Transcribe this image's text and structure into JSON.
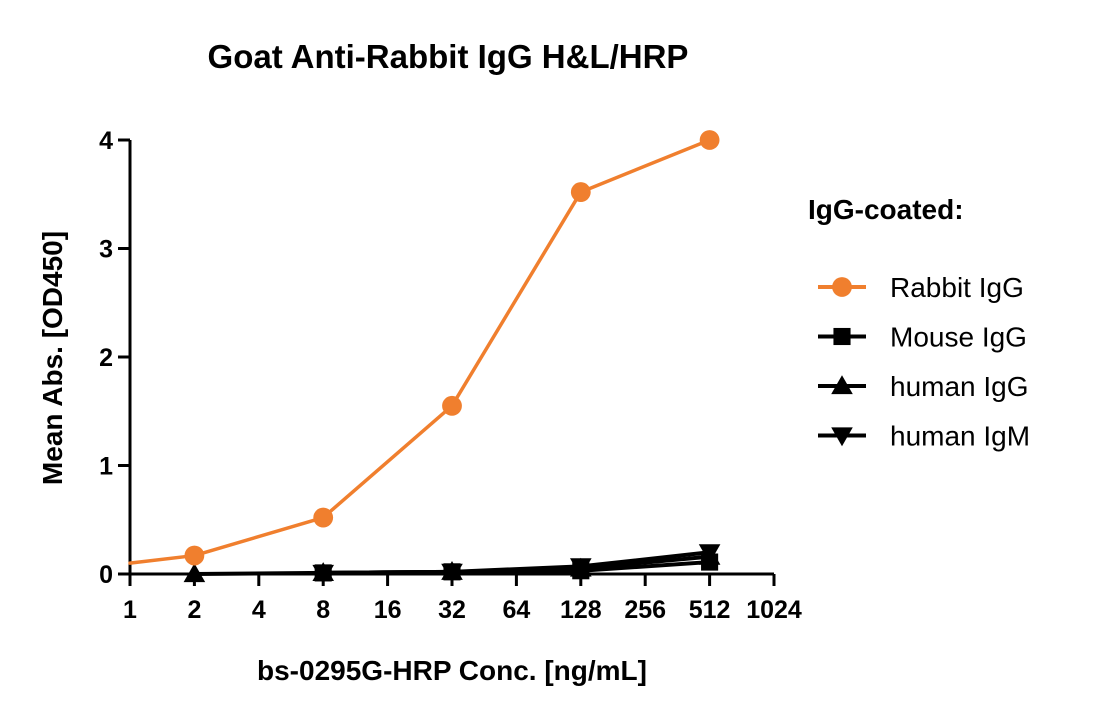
{
  "chart_data": {
    "type": "line",
    "title": "Goat Anti-Rabbit IgG H&L/HRP",
    "xlabel": "bs-0295G-HRP Conc. [ng/mL]",
    "ylabel": "Mean Abs. [OD450]",
    "x_scale": "log2",
    "xlim": [
      1,
      1024
    ],
    "ylim": [
      0,
      4
    ],
    "x_ticks": [
      "1",
      "2",
      "4",
      "8",
      "16",
      "32",
      "64",
      "128",
      "256",
      "512",
      "1024"
    ],
    "y_ticks": [
      "0",
      "1",
      "2",
      "3",
      "4"
    ],
    "legend_title": "IgG-coated:",
    "legend_position": "right",
    "series": [
      {
        "name": "Rabbit IgG",
        "color": "#f07f2e",
        "marker": "circle",
        "x": [
          1,
          2,
          8,
          32,
          128,
          512
        ],
        "y": [
          0.1,
          0.17,
          0.52,
          1.55,
          3.52,
          4.0
        ]
      },
      {
        "name": "Mouse IgG",
        "color": "#000000",
        "marker": "square",
        "x": [
          8,
          32,
          128,
          512
        ],
        "y": [
          0.01,
          0.02,
          0.03,
          0.11
        ]
      },
      {
        "name": "human IgG",
        "color": "#000000",
        "marker": "triangle-up",
        "x": [
          2,
          8,
          32,
          128,
          512
        ],
        "y": [
          0.0,
          0.01,
          0.02,
          0.05,
          0.16
        ]
      },
      {
        "name": "human IgM",
        "color": "#000000",
        "marker": "triangle-down",
        "x": [
          8,
          32,
          128,
          512
        ],
        "y": [
          0.01,
          0.02,
          0.07,
          0.2
        ]
      }
    ]
  }
}
